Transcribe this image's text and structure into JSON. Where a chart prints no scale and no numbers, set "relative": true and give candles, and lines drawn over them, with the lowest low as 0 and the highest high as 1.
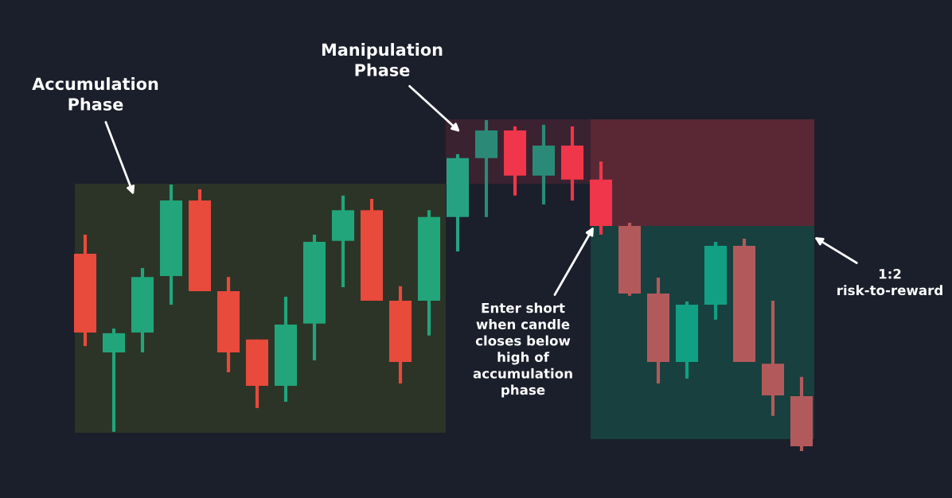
{
  "chart_data": {
    "type": "candlestick",
    "relative": true,
    "categories": [
      null,
      null,
      null,
      null,
      null,
      null,
      null,
      null,
      null,
      null,
      null,
      null,
      null,
      null,
      null,
      null,
      null,
      null,
      null,
      null,
      null,
      null,
      null,
      null,
      null,
      null
    ],
    "ohlc": [
      [
        0.596,
        0.654,
        0.317,
        0.358
      ],
      [
        0.298,
        0.37,
        0.058,
        0.356
      ],
      [
        0.358,
        0.553,
        0.298,
        0.526
      ],
      [
        0.529,
        0.805,
        0.442,
        0.757
      ],
      [
        0.757,
        0.791,
        0.483,
        0.483
      ],
      [
        0.483,
        0.526,
        0.238,
        0.298
      ],
      [
        0.337,
        0.337,
        0.13,
        0.197
      ],
      [
        0.197,
        0.466,
        0.149,
        0.382
      ],
      [
        0.385,
        0.654,
        0.274,
        0.632
      ],
      [
        0.635,
        0.772,
        0.495,
        0.728
      ],
      [
        0.728,
        0.762,
        0.454,
        0.454
      ],
      [
        0.454,
        0.498,
        0.204,
        0.269
      ],
      [
        0.454,
        0.728,
        0.349,
        0.707
      ],
      [
        0.707,
        0.897,
        0.603,
        0.885
      ],
      [
        0.885,
        1.0,
        0.707,
        0.969
      ],
      [
        0.969,
        0.981,
        0.772,
        0.832
      ],
      [
        0.832,
        0.986,
        0.745,
        0.923
      ],
      [
        0.923,
        0.981,
        0.757,
        0.82
      ],
      [
        0.82,
        0.875,
        0.654,
        0.68
      ],
      [
        0.68,
        0.69,
        0.469,
        0.476
      ],
      [
        0.476,
        0.524,
        0.204,
        0.269
      ],
      [
        0.269,
        0.452,
        0.219,
        0.442
      ],
      [
        0.442,
        0.632,
        0.397,
        0.62
      ],
      [
        0.62,
        0.642,
        0.269,
        0.269
      ],
      [
        0.264,
        0.454,
        0.106,
        0.168
      ],
      [
        0.166,
        0.224,
        0.0,
        0.014
      ]
    ],
    "colors": [
      "#e84a3b",
      "#22a57a",
      "#22a57a",
      "#22a57a",
      "#e84a3b",
      "#e84a3b",
      "#e84a3b",
      "#22a57a",
      "#22a57a",
      "#22a57a",
      "#e84a3b",
      "#e84a3b",
      "#22a57a",
      "#26a283",
      "#2a8a77",
      "#f0364a",
      "#2a8a77",
      "#f0364a",
      "#f0364a",
      "#b25a5b",
      "#b25a5b",
      "#12a084",
      "#12a084",
      "#b25a5b",
      "#b25a5b",
      "#b25a5b"
    ],
    "annotations": [
      "Accumulation\nPhase",
      "Manipulation\nPhase",
      "Enter short\nwhen candle\ncloses below\nhigh of\naccumulation\nphase",
      "1:2\nrisk-to-reward"
    ]
  }
}
